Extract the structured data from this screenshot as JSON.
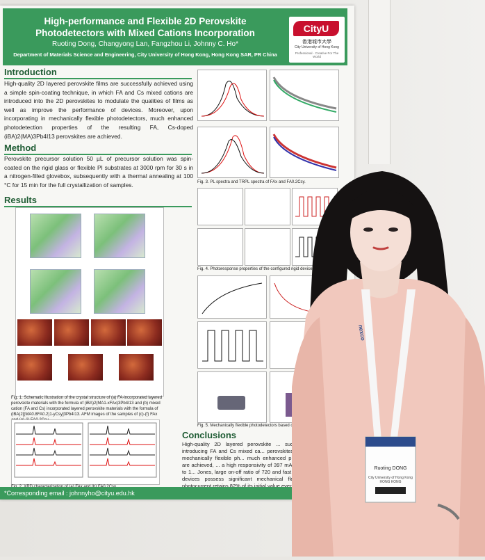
{
  "poster": {
    "title": "High-performance and Flexible 2D Perovskite Photodetectors with Mixed Cations Incorporation",
    "authors": "Ruoting Dong, Changyong Lan, Fangzhou Li, Johnny C. Ho*",
    "department": "Department of Materials Science and Engineering, City University of Hong Kong, Hong Kong SAR, PR China",
    "logo": {
      "name": "CityU",
      "zh": "香港城市大學",
      "en": "City University of Hong Kong",
      "tagline": "Professional · Creative For The World"
    },
    "introduction": {
      "heading": "Introduction",
      "text": "High-quality 2D layered perovskite films are successfully achieved using a simple spin-coating technique, in which FA and Cs mixed cations are introduced into the 2D perovskites to modulate the qualities of films as well as improve the performance of devices. Moreover, upon incorporating in mechanically flexible photodetectors, much enhanced photodetection properties of the resulting FA, Cs-doped (iBA)2(MA)3Pb4I13 perovskites are achieved."
    },
    "method": {
      "heading": "Method",
      "text": "Perovskite precursor solution 50 µL of precursor solution was spin-coated on the rigid glass or flexible PI substrates at 3000 rpm for 30 s in a nitrogen-filled glovebox, subsequently with a thermal annealing at 100 °C for 15 min for the full crystallization of samples."
    },
    "results": {
      "heading": "Results",
      "fig1_caption": "Fig. 1. Schematic illustration of the crystal structure of (a) FA-incorporated layered perovskite materials with the formula of (iBA)2(MA1-xFAx)3Pb4I13 and (b) mixed cation (FA and Cs) incorporated layered perovskite materials with the formula of (iBA)2[(MA0.8FA0.2)1-yCsy]3Pb4I13. AFM images of the samples of (c)-(f) FAx and (g)-(j) FA0.2Csy.",
      "fig2_caption": "Fig. 2. XRD characterization of (a) FAx and (b) FA0.2Csy.",
      "fig3_caption": "Fig. 3. PL spectra and TRPL spectra of FAx and FA0.2Csy.",
      "fig4_caption": "Fig. 4. Photoresponse properties of the configured rigid devices.",
      "fig5_caption": "Fig. 5. Mechanically flexible photodetectors based on FA0.2Cs..."
    },
    "conclusions": {
      "heading": "Conclusions",
      "text": "High-quality 2D layered perovskite ... successfully achieved by introducing FA and Cs mixed ca... perovskites. Upon incorporating in mechanically flexible ph... much enhanced photodetection properties are achieved, ... a high responsivity of 397 mA/W, a high detectivity up to 1... Jones, large on-off ratio of 720 and fast response. More impor... devices possess significant mechanical flexibility and durabilit... photocurrent retains 82% of its initial value even after 9,000 b... cycles."
    },
    "footer": "*Corresponding email : johnnyho@cityu.edu.hk"
  },
  "badge": {
    "name": "Ruoting DONG",
    "affiliation": "City University of Hong Kong HONG KONG",
    "lanyard_text": "nexco"
  },
  "colors": {
    "poster_green": "#3a9a5c",
    "heading_green": "#1f5c34",
    "cityu_red": "#c8102e",
    "dress_pink": "#f1c8bd",
    "hair": "#151212"
  }
}
